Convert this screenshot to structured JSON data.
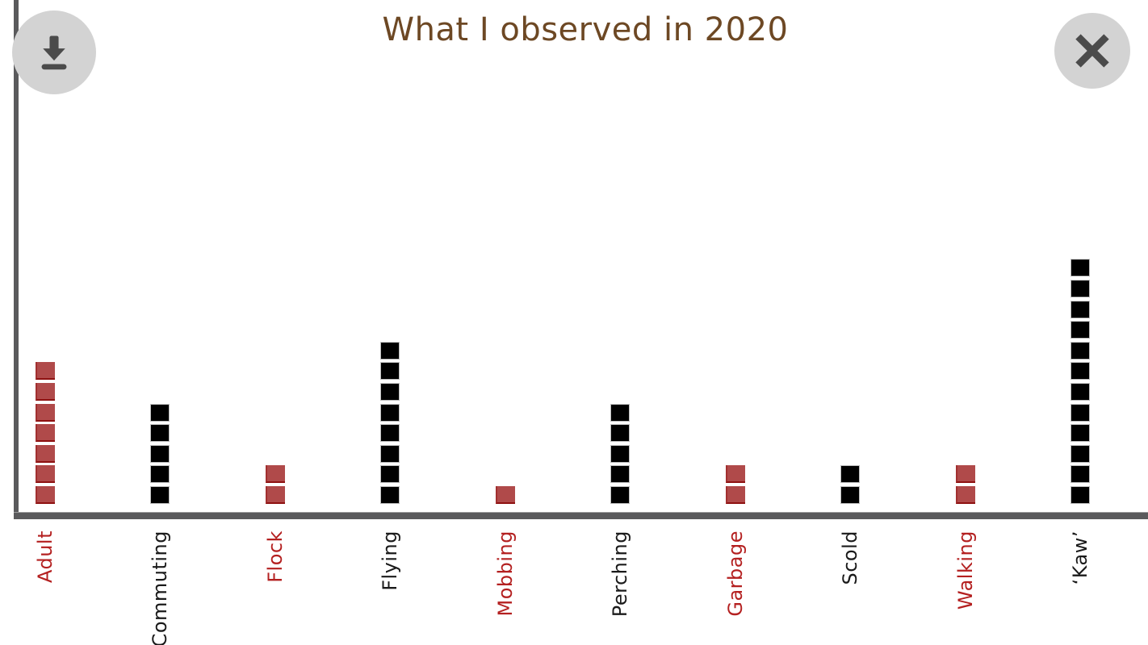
{
  "title": "What I observed in 2020",
  "toolbar": {
    "download_icon": "download-icon",
    "close_icon": "close-icon"
  },
  "chart_data": {
    "type": "bar",
    "subtype": "unit-square-stack",
    "title": "What I observed in 2020",
    "xlabel": "",
    "ylabel": "",
    "grid": false,
    "legend": "none",
    "categories": [
      "Adult",
      "Commuting",
      "Flock",
      "Flying",
      "Mobbing",
      "Perching",
      "Garbage",
      "Scold",
      "Walking",
      "‘Kaw’"
    ],
    "values": [
      7,
      5,
      2,
      8,
      1,
      5,
      2,
      2,
      2,
      12
    ],
    "bar_colors": [
      "#b04a4a",
      "#000000",
      "#b04a4a",
      "#000000",
      "#b04a4a",
      "#000000",
      "#b04a4a",
      "#000000",
      "#b04a4a",
      "#000000"
    ],
    "label_colors": [
      "#b42020",
      "#1a1a1a",
      "#b42020",
      "#1a1a1a",
      "#b42020",
      "#1a1a1a",
      "#b42020",
      "#1a1a1a",
      "#b42020",
      "#1a1a1a"
    ],
    "unit_value": 1
  },
  "colors": {
    "title": "#6d4824",
    "red_square": "#b04a4a",
    "red_square_edge": "#8e1111",
    "black_square": "#000000",
    "axis": "#5a5a5c",
    "button_bg": "#d3d3d3",
    "icon": "#4b4b4b"
  }
}
